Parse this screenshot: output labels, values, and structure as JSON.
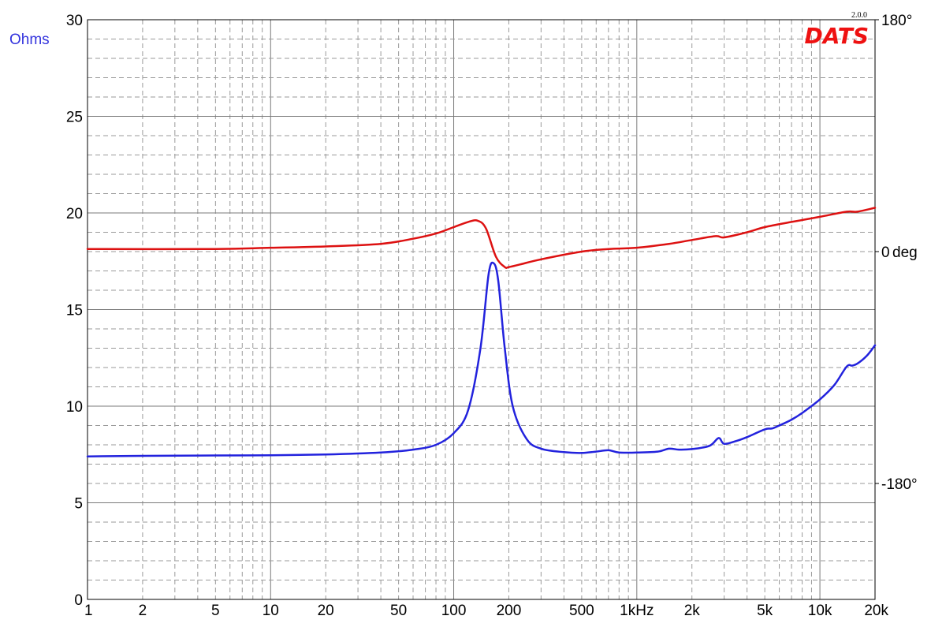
{
  "chart_data": {
    "type": "line",
    "brand": "DATS",
    "version": "2.0.0",
    "x_scale": "log",
    "xlim": [
      1,
      20000
    ],
    "x_ticks": [
      {
        "value": 1,
        "label": "1"
      },
      {
        "value": 2,
        "label": "2"
      },
      {
        "value": 5,
        "label": "5"
      },
      {
        "value": 10,
        "label": "10"
      },
      {
        "value": 20,
        "label": "20"
      },
      {
        "value": 50,
        "label": "50"
      },
      {
        "value": 100,
        "label": "100"
      },
      {
        "value": 200,
        "label": "200"
      },
      {
        "value": 500,
        "label": "500"
      },
      {
        "value": 1000,
        "label": "1kHz"
      },
      {
        "value": 2000,
        "label": "2k"
      },
      {
        "value": 5000,
        "label": "5k"
      },
      {
        "value": 10000,
        "label": "10k"
      },
      {
        "value": 20000,
        "label": "20k"
      }
    ],
    "y_left": {
      "unit_label": "Ohms",
      "unit_color": "#3333dd",
      "ylim": [
        0,
        30
      ],
      "ticks": [
        {
          "value": 0,
          "label": "0"
        },
        {
          "value": 5,
          "label": "5"
        },
        {
          "value": 10,
          "label": "10"
        },
        {
          "value": 15,
          "label": "15"
        },
        {
          "value": 20,
          "label": "20"
        },
        {
          "value": 25,
          "label": "25"
        },
        {
          "value": 30,
          "label": "30"
        }
      ]
    },
    "y_right": {
      "ylim": [
        -270,
        180
      ],
      "ticks": [
        {
          "value": 180,
          "label": "180°"
        },
        {
          "value": 0,
          "label": "0"
        },
        {
          "value": -180,
          "label": "-180°"
        }
      ],
      "unit_label": "deg",
      "unit_color": "#ee2222"
    },
    "grid": true,
    "series": [
      {
        "axis": "left",
        "color": "#2222dd",
        "x": [
          1,
          2,
          5,
          10,
          20,
          40,
          60,
          80,
          100,
          120,
          140,
          155,
          165,
          175,
          190,
          210,
          250,
          300,
          400,
          500,
          600,
          700,
          800,
          1000,
          1300,
          1500,
          1700,
          2000,
          2500,
          2800,
          3000,
          3500,
          4000,
          5000,
          5500,
          6000,
          7000,
          8000,
          10000,
          12000,
          14000,
          15000,
          16000,
          18000,
          20000
        ],
        "y": [
          7.4,
          7.43,
          7.45,
          7.46,
          7.5,
          7.6,
          7.75,
          8.0,
          8.6,
          9.8,
          13.0,
          16.8,
          17.4,
          16.5,
          13.0,
          10.0,
          8.3,
          7.8,
          7.62,
          7.58,
          7.65,
          7.72,
          7.6,
          7.6,
          7.65,
          7.8,
          7.75,
          7.78,
          7.95,
          8.35,
          8.05,
          8.2,
          8.4,
          8.8,
          8.85,
          9.0,
          9.3,
          9.65,
          10.35,
          11.1,
          12.05,
          12.1,
          12.2,
          12.6,
          13.15
        ]
      },
      {
        "axis": "right",
        "color": "#dd1111",
        "x": [
          1,
          5,
          10,
          20,
          40,
          60,
          80,
          100,
          120,
          135,
          150,
          170,
          190,
          200,
          230,
          300,
          500,
          700,
          1000,
          1500,
          2000,
          2700,
          3000,
          4000,
          5000,
          7000,
          10000,
          14000,
          16000,
          20000
        ],
        "y": [
          2,
          2,
          3,
          4,
          6,
          10,
          14,
          19,
          23,
          24,
          18,
          -4,
          -12,
          -12,
          -10,
          -6,
          0,
          2,
          3,
          6,
          9,
          12,
          11,
          15,
          19,
          23,
          27,
          31,
          31,
          34
        ]
      }
    ]
  }
}
